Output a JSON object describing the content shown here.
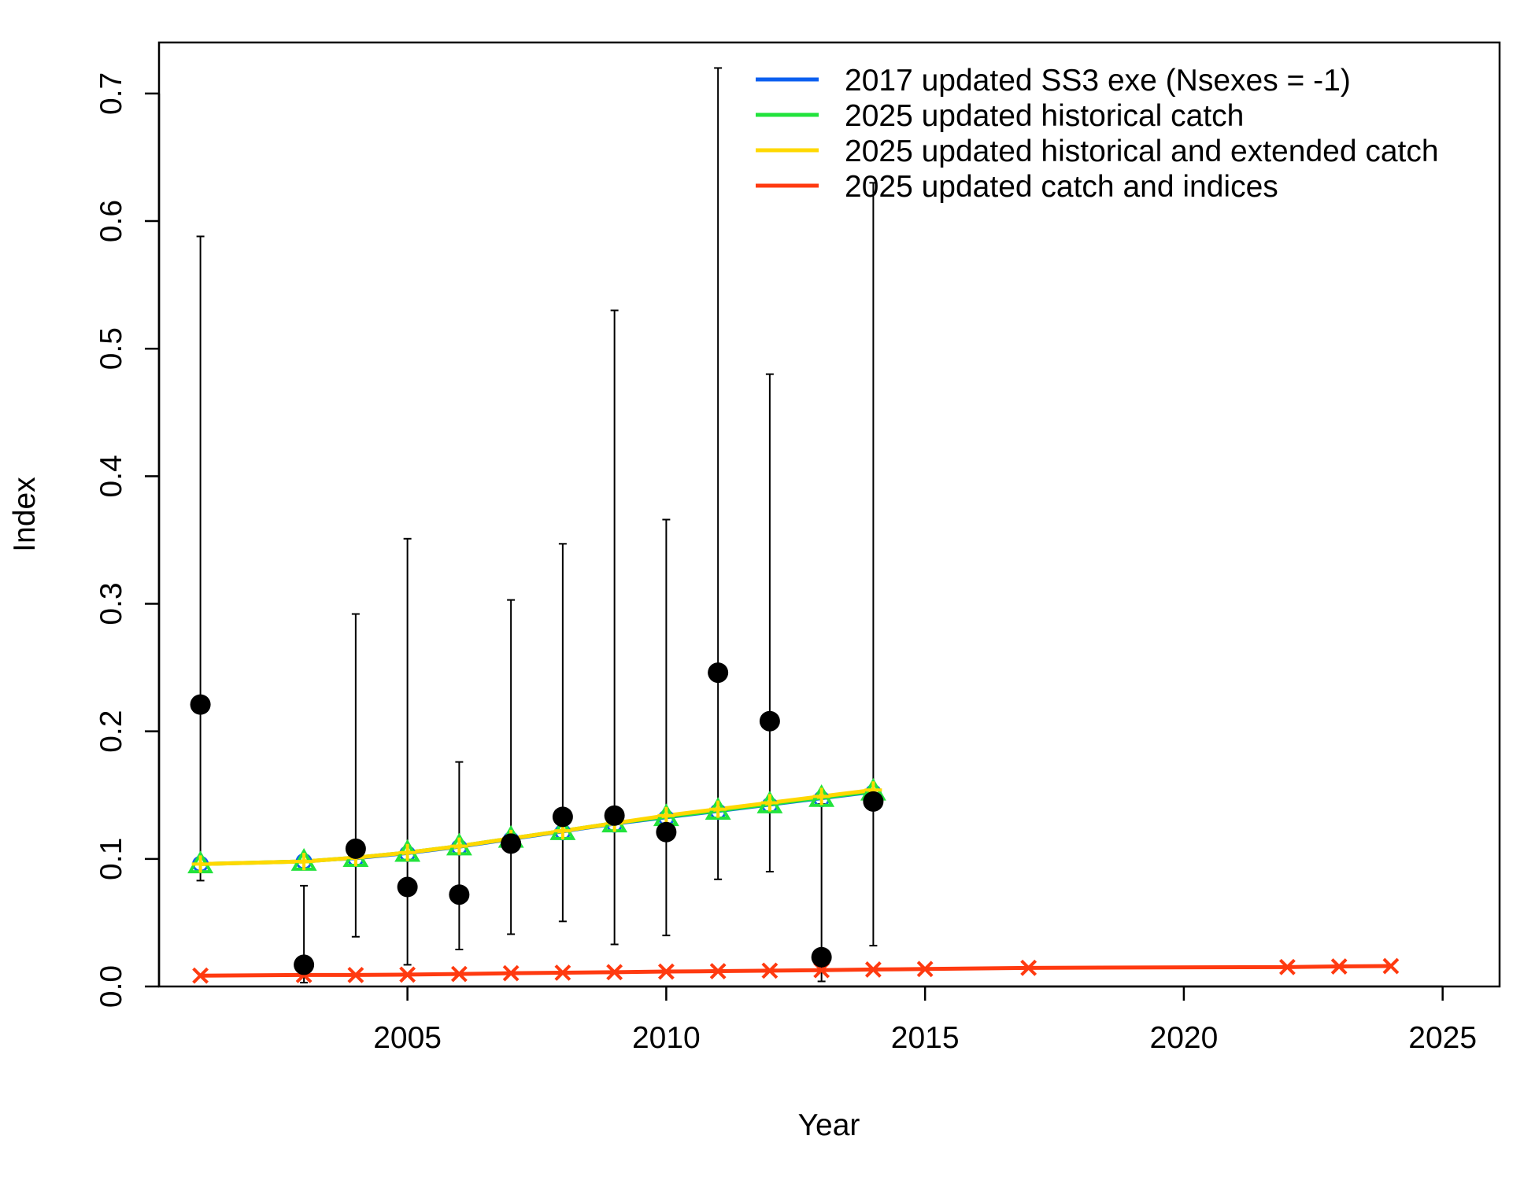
{
  "chart_data": {
    "type": "line",
    "title": "",
    "xlabel": "Year",
    "ylabel": "Index",
    "xlim": [
      2000.2,
      2026.1
    ],
    "ylim": [
      0,
      0.74
    ],
    "xticks": [
      2005,
      2010,
      2015,
      2020,
      2025
    ],
    "yticks": [
      0.0,
      0.1,
      0.2,
      0.3,
      0.4,
      0.5,
      0.6,
      0.7
    ],
    "ytick_labels": [
      "0.0",
      "0.1",
      "0.2",
      "0.3",
      "0.4",
      "0.5",
      "0.6",
      "0.7"
    ],
    "grid": false,
    "legend_position": "top-right",
    "observed": {
      "points": [
        {
          "x": 2001,
          "y": 0.221,
          "lo": 0.083,
          "hi": 0.588
        },
        {
          "x": 2003,
          "y": 0.017,
          "lo": 0.003,
          "hi": 0.079
        },
        {
          "x": 2004,
          "y": 0.108,
          "lo": 0.039,
          "hi": 0.292
        },
        {
          "x": 2005,
          "y": 0.078,
          "lo": 0.017,
          "hi": 0.351
        },
        {
          "x": 2006,
          "y": 0.072,
          "lo": 0.029,
          "hi": 0.176
        },
        {
          "x": 2007,
          "y": 0.112,
          "lo": 0.041,
          "hi": 0.303
        },
        {
          "x": 2008,
          "y": 0.133,
          "lo": 0.051,
          "hi": 0.347
        },
        {
          "x": 2009,
          "y": 0.134,
          "lo": 0.033,
          "hi": 0.53
        },
        {
          "x": 2010,
          "y": 0.121,
          "lo": 0.04,
          "hi": 0.366
        },
        {
          "x": 2011,
          "y": 0.246,
          "lo": 0.084,
          "hi": 0.72
        },
        {
          "x": 2012,
          "y": 0.208,
          "lo": 0.09,
          "hi": 0.48
        },
        {
          "x": 2013,
          "y": 0.023,
          "lo": 0.004,
          "hi": 0.143
        },
        {
          "x": 2014,
          "y": 0.145,
          "lo": 0.032,
          "hi": 0.63
        }
      ]
    },
    "series": [
      {
        "name": "2017 updated SS3 exe (Nsexes = -1)",
        "color": "#0b5ff0",
        "marker": "circle",
        "x": [
          2001,
          2003,
          2004,
          2005,
          2006,
          2007,
          2008,
          2009,
          2010,
          2011,
          2012,
          2013,
          2014
        ],
        "y": [
          0.096,
          0.098,
          0.1,
          0.104,
          0.109,
          0.115,
          0.121,
          0.127,
          0.132,
          0.137,
          0.142,
          0.147,
          0.152
        ]
      },
      {
        "name": "2025 updated historical catch",
        "color": "#22e33c",
        "marker": "triangle",
        "x": [
          2001,
          2003,
          2004,
          2005,
          2006,
          2007,
          2008,
          2009,
          2010,
          2011,
          2012,
          2013,
          2014
        ],
        "y": [
          0.096,
          0.098,
          0.101,
          0.105,
          0.11,
          0.116,
          0.122,
          0.128,
          0.133,
          0.138,
          0.143,
          0.148,
          0.153
        ]
      },
      {
        "name": "2025 updated historical and extended catch",
        "color": "#ffd800",
        "marker": "plus",
        "x": [
          2001,
          2003,
          2004,
          2005,
          2006,
          2007,
          2008,
          2009,
          2010,
          2011,
          2012,
          2013,
          2014
        ],
        "y": [
          0.096,
          0.098,
          0.101,
          0.105,
          0.11,
          0.116,
          0.122,
          0.128,
          0.134,
          0.139,
          0.144,
          0.149,
          0.154
        ]
      },
      {
        "name": "2025 updated catch and indices",
        "color": "#ff3a10",
        "marker": "x",
        "x": [
          2001,
          2003,
          2004,
          2005,
          2006,
          2007,
          2008,
          2009,
          2010,
          2011,
          2012,
          2013,
          2014,
          2015,
          2017,
          2022,
          2023,
          2024
        ],
        "y": [
          0.0085,
          0.009,
          0.009,
          0.0093,
          0.0098,
          0.0104,
          0.0108,
          0.0112,
          0.0117,
          0.012,
          0.0124,
          0.0128,
          0.0133,
          0.0137,
          0.0146,
          0.0152,
          0.0157,
          0.016
        ]
      }
    ]
  }
}
